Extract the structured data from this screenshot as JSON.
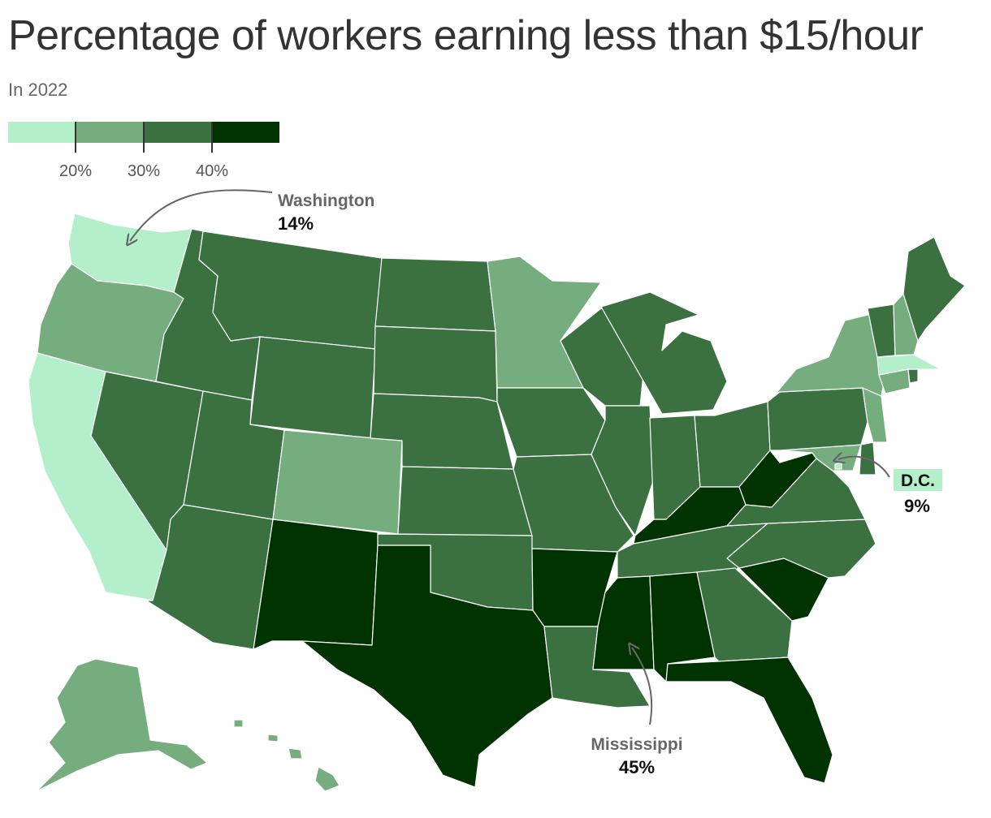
{
  "title": "Percentage of workers earning less than $15/hour",
  "subtitle": "In 2022",
  "legend": {
    "bins": [
      {
        "color": "#b2efca"
      },
      {
        "color": "#76ad7f"
      },
      {
        "color": "#3b7040"
      },
      {
        "color": "#003300"
      }
    ],
    "thresholds": [
      20,
      30,
      40
    ],
    "labels": [
      "20%",
      "30%",
      "40%"
    ]
  },
  "annotations": {
    "washington": {
      "name": "Washington",
      "value": "14%"
    },
    "dc": {
      "name": "D.C.",
      "value": "9%"
    },
    "mississippi": {
      "name": "Mississippi",
      "value": "45%"
    }
  },
  "map_data": {
    "unit": "percent",
    "states": [
      {
        "state": "Washington",
        "value": 14,
        "bin": 0
      },
      {
        "state": "California",
        "value": null,
        "bin": 0
      },
      {
        "state": "Massachusetts",
        "value": null,
        "bin": 0
      },
      {
        "state": "District of Columbia",
        "value": 9,
        "bin": 0
      },
      {
        "state": "Oregon",
        "value": null,
        "bin": 1
      },
      {
        "state": "Colorado",
        "value": null,
        "bin": 1
      },
      {
        "state": "Minnesota",
        "value": null,
        "bin": 1
      },
      {
        "state": "New York",
        "value": null,
        "bin": 1
      },
      {
        "state": "New Hampshire",
        "value": null,
        "bin": 1
      },
      {
        "state": "Connecticut",
        "value": null,
        "bin": 1
      },
      {
        "state": "New Jersey",
        "value": null,
        "bin": 1
      },
      {
        "state": "Maryland",
        "value": null,
        "bin": 1
      },
      {
        "state": "Alaska",
        "value": null,
        "bin": 1
      },
      {
        "state": "Hawaii",
        "value": null,
        "bin": 1
      },
      {
        "state": "Idaho",
        "value": null,
        "bin": 2
      },
      {
        "state": "Montana",
        "value": null,
        "bin": 2
      },
      {
        "state": "Nevada",
        "value": null,
        "bin": 2
      },
      {
        "state": "Utah",
        "value": null,
        "bin": 2
      },
      {
        "state": "Arizona",
        "value": null,
        "bin": 2
      },
      {
        "state": "Wyoming",
        "value": null,
        "bin": 2
      },
      {
        "state": "North Dakota",
        "value": null,
        "bin": 2
      },
      {
        "state": "South Dakota",
        "value": null,
        "bin": 2
      },
      {
        "state": "Nebraska",
        "value": null,
        "bin": 2
      },
      {
        "state": "Kansas",
        "value": null,
        "bin": 2
      },
      {
        "state": "Oklahoma",
        "value": null,
        "bin": 2
      },
      {
        "state": "Iowa",
        "value": null,
        "bin": 2
      },
      {
        "state": "Missouri",
        "value": null,
        "bin": 2
      },
      {
        "state": "Wisconsin",
        "value": null,
        "bin": 2
      },
      {
        "state": "Illinois",
        "value": null,
        "bin": 2
      },
      {
        "state": "Michigan",
        "value": null,
        "bin": 2
      },
      {
        "state": "Indiana",
        "value": null,
        "bin": 2
      },
      {
        "state": "Ohio",
        "value": null,
        "bin": 2
      },
      {
        "state": "Pennsylvania",
        "value": null,
        "bin": 2
      },
      {
        "state": "Vermont",
        "value": null,
        "bin": 2
      },
      {
        "state": "Maine",
        "value": null,
        "bin": 2
      },
      {
        "state": "Rhode Island",
        "value": null,
        "bin": 2
      },
      {
        "state": "Delaware",
        "value": null,
        "bin": 2
      },
      {
        "state": "Virginia",
        "value": null,
        "bin": 2
      },
      {
        "state": "North Carolina",
        "value": null,
        "bin": 2
      },
      {
        "state": "Tennessee",
        "value": null,
        "bin": 2
      },
      {
        "state": "Georgia",
        "value": null,
        "bin": 2
      },
      {
        "state": "Louisiana",
        "value": null,
        "bin": 2
      },
      {
        "state": "New Mexico",
        "value": null,
        "bin": 3
      },
      {
        "state": "Texas",
        "value": null,
        "bin": 3
      },
      {
        "state": "Arkansas",
        "value": null,
        "bin": 3
      },
      {
        "state": "Mississippi",
        "value": 45,
        "bin": 3
      },
      {
        "state": "Alabama",
        "value": null,
        "bin": 3
      },
      {
        "state": "Florida",
        "value": null,
        "bin": 3
      },
      {
        "state": "South Carolina",
        "value": null,
        "bin": 3
      },
      {
        "state": "Kentucky",
        "value": null,
        "bin": 3
      },
      {
        "state": "West Virginia",
        "value": null,
        "bin": 3
      }
    ]
  }
}
